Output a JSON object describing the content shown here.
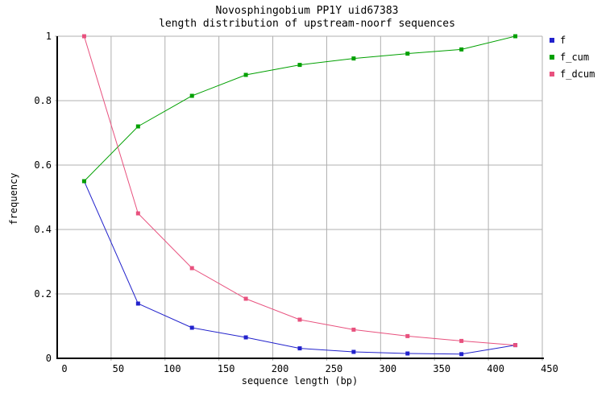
{
  "chart_data": {
    "type": "line",
    "title": "Novosphingobium PP1Y uid67383",
    "subtitle": "length distribution of upstream-noorf sequences",
    "xlabel": "sequence length (bp)",
    "ylabel": "frequency",
    "xlim": [
      0,
      450
    ],
    "ylim": [
      0,
      1
    ],
    "x_ticks": [
      0,
      50,
      100,
      150,
      200,
      250,
      300,
      350,
      400,
      450
    ],
    "x_tick_labels": [
      "0",
      "50",
      "100",
      "150",
      "200",
      "250",
      "300",
      "350",
      "400",
      "450"
    ],
    "y_ticks": [
      0,
      0.2,
      0.4,
      0.6,
      0.8,
      1
    ],
    "y_tick_labels": [
      "0",
      "0.2",
      "0.4",
      "0.6",
      "0.8",
      "1"
    ],
    "grid": true,
    "legend_position": "outside-top-right",
    "x": [
      25,
      75,
      125,
      175,
      225,
      275,
      325,
      375,
      425
    ],
    "series": [
      {
        "name": "f",
        "color": "#2222cc",
        "values": [
          0.55,
          0.17,
          0.095,
          0.065,
          0.031,
          0.02,
          0.015,
          0.013,
          0.041
        ]
      },
      {
        "name": "f_cum",
        "color": "#00a000",
        "values": [
          0.55,
          0.72,
          0.815,
          0.88,
          0.911,
          0.931,
          0.946,
          0.959,
          1.0
        ]
      },
      {
        "name": "f_dcum",
        "color": "#e8517e",
        "values": [
          1.0,
          0.45,
          0.28,
          0.185,
          0.12,
          0.089,
          0.069,
          0.054,
          0.041
        ]
      }
    ],
    "colors": {
      "grid": "#b0b0b0",
      "axis": "#000000",
      "background": "#ffffff"
    }
  }
}
